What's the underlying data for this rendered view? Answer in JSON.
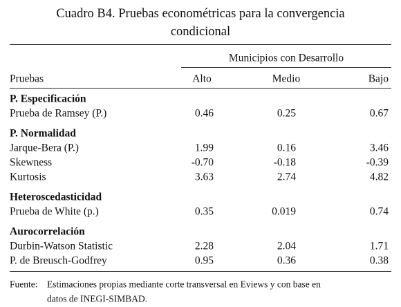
{
  "title_lines": [
    "Cuadro B4. Pruebas econométricas para la convergencia",
    "condicional"
  ],
  "table": {
    "group_header": "Municipios con Desarrollo",
    "row_header": "Pruebas",
    "columns": [
      "Alto",
      "Medio",
      "Bajo"
    ],
    "sections": [
      {
        "name": "P. Especificación",
        "rows": [
          [
            "Prueba de Ramsey (P.)",
            "0.46",
            "0.25",
            "0.67"
          ]
        ]
      },
      {
        "name": "P. Normalidad",
        "rows": [
          [
            "Jarque-Bera (P.)",
            "1.99",
            "0.16",
            "3.46"
          ],
          [
            "Skewness",
            "-0.70",
            "-0.18",
            "-0.39"
          ],
          [
            "Kurtosis",
            "3.63",
            "2.74",
            "4.82"
          ]
        ]
      },
      {
        "name": "Heteroscedasticidad",
        "rows": [
          [
            "Prueba de White (p.)",
            "0.35",
            "0.019",
            "0.74"
          ]
        ]
      },
      {
        "name": "Aurocorrelación",
        "rows": [
          [
            "Durbin-Watson Statistic",
            "2.28",
            "2.04",
            "1.71"
          ],
          [
            "P. de Breusch-Godfrey",
            "0.95",
            "0.36",
            "0.38"
          ]
        ]
      }
    ]
  },
  "note": {
    "label": "Fuente:",
    "lines": [
      "Estimaciones propias mediante corte transversal en Eviews y con base en",
      "datos de INEGI-SIMBAD."
    ]
  }
}
